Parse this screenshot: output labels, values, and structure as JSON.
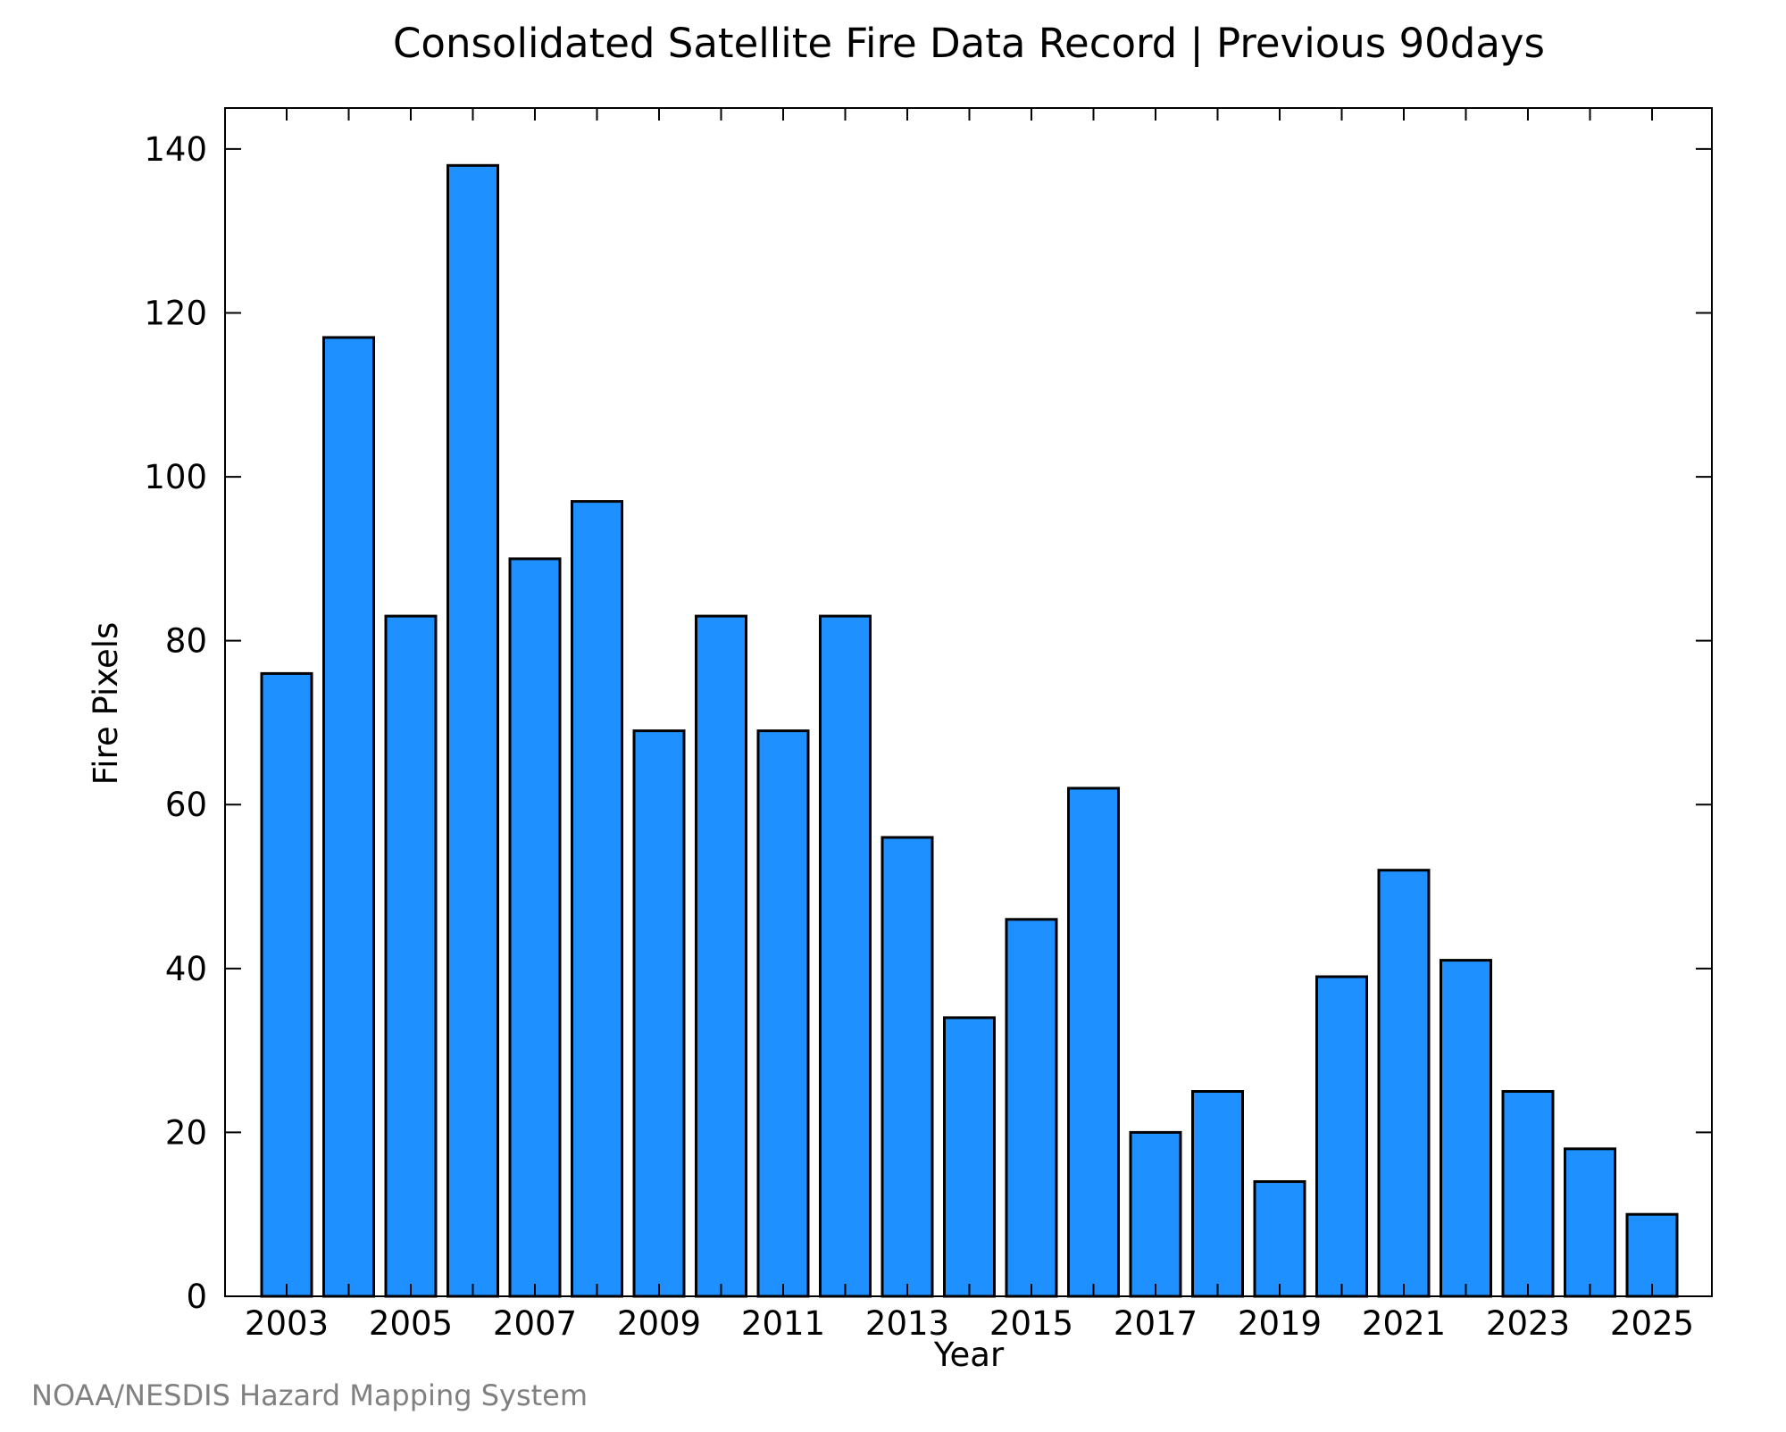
{
  "chart_data": {
    "type": "bar",
    "title": "Consolidated Satellite Fire Data Record | Previous 90days",
    "xlabel": "Year",
    "ylabel": "Fire Pixels",
    "categories": [
      "2003",
      "2004",
      "2005",
      "2006",
      "2007",
      "2008",
      "2009",
      "2010",
      "2011",
      "2012",
      "2013",
      "2014",
      "2015",
      "2016",
      "2017",
      "2018",
      "2019",
      "2020",
      "2021",
      "2022",
      "2023",
      "2024",
      "2025"
    ],
    "values": [
      76,
      117,
      83,
      138,
      90,
      97,
      69,
      83,
      69,
      83,
      56,
      34,
      46,
      62,
      20,
      25,
      14,
      39,
      52,
      41,
      25,
      18,
      10
    ],
    "x_tick_labels": [
      "2003",
      "2005",
      "2007",
      "2009",
      "2011",
      "2013",
      "2015",
      "2017",
      "2019",
      "2021",
      "2023",
      "2025"
    ],
    "y_tick_labels": [
      "0",
      "20",
      "40",
      "60",
      "80",
      "100",
      "120",
      "140"
    ],
    "ylim": [
      0,
      145
    ],
    "bar_color": "#1e90ff",
    "grid": false,
    "legend": "none"
  },
  "footer": {
    "credit": "NOAA/NESDIS Hazard Mapping System"
  }
}
